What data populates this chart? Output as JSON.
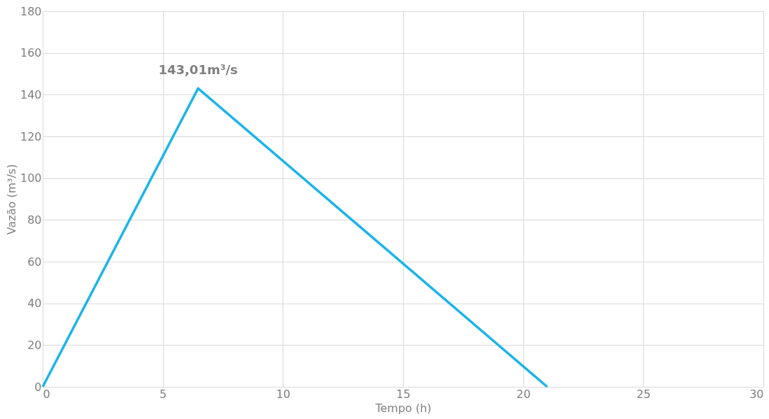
{
  "chart_data": {
    "type": "line",
    "xlabel": "Tempo (h)",
    "ylabel": "Vazão (m³/s)",
    "x": [
      0,
      6.47,
      21
    ],
    "series": [
      {
        "color": "#1cb4ea",
        "values": [
          0,
          143.01,
          0
        ]
      }
    ],
    "xlim": [
      0,
      30
    ],
    "xticks": [
      0,
      5,
      10,
      15,
      20,
      25,
      30
    ],
    "ylim": [
      0,
      180
    ],
    "yticks": [
      0,
      20,
      40,
      60,
      80,
      100,
      120,
      140,
      160,
      180
    ],
    "grid": true,
    "marker": "none",
    "line_style": "solid",
    "annotations": [
      {
        "text": "143,01m³/s",
        "x": 6.47,
        "y": 143.01
      }
    ]
  }
}
